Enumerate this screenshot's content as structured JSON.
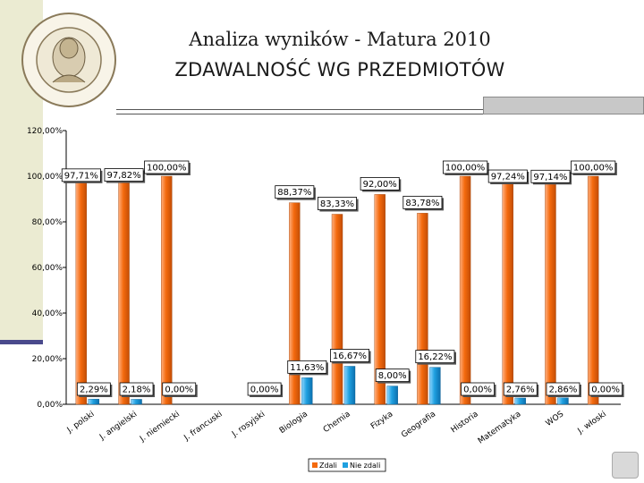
{
  "header": {
    "title": "Analiza wyników  - Matura 2010",
    "subtitle": "ZDAWALNOŚĆ WG PRZEDMIOTÓW"
  },
  "colors": {
    "series_passed": "#f46a0e",
    "series_failed": "#1fa0e0",
    "accent": "#4a4a8c",
    "sidebar": "#ebebd2"
  },
  "icons": {
    "logo": "school-seal-logo",
    "nav": "navigation-button-icon"
  },
  "chart_data": {
    "type": "bar",
    "categories": [
      "J. polski",
      "J. angielski",
      "J. niemiecki",
      "J. francuski",
      "J. rosyjski",
      "Biologia",
      "Chemia",
      "Fizyka",
      "Geografia",
      "Historia",
      "Matematyka",
      "WOS",
      "J. włoski"
    ],
    "series": [
      {
        "name": "Zdali",
        "values": [
          97.71,
          97.82,
          100.0,
          null,
          null,
          88.37,
          83.33,
          92.0,
          83.78,
          100.0,
          97.24,
          97.14,
          100.0
        ]
      },
      {
        "name": "Nie zdali",
        "values": [
          2.29,
          2.18,
          0.0,
          null,
          0.0,
          11.63,
          16.67,
          8.0,
          16.22,
          0.0,
          2.76,
          2.86,
          0.0
        ]
      }
    ],
    "labels": {
      "Zdali": [
        "97,71%",
        "97,82%",
        "100,00%",
        "",
        "",
        "88,37%",
        "83,33%",
        "92,00%",
        "83,78%",
        "100,00%",
        "97,24%",
        "97,14%",
        "100,00%"
      ],
      "Nie zdali": [
        "2,29%",
        "2,18%",
        "0,00%",
        "",
        "0,00%",
        "11,63%",
        "16,67%",
        "8,00%",
        "16,22%",
        "0,00%",
        "2,76%",
        "2,86%",
        "0,00%"
      ]
    },
    "y_ticks": [
      "0,00%",
      "20,00%",
      "40,00%",
      "60,00%",
      "80,00%",
      "100,00%",
      "120,00%"
    ],
    "ylim": [
      0,
      120
    ],
    "legend": "bottom",
    "grid": false
  }
}
